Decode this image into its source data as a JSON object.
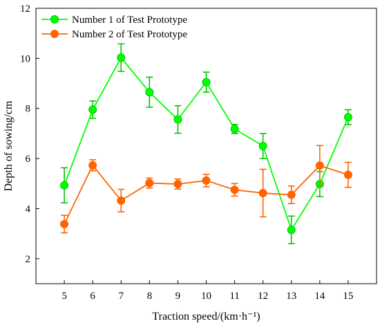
{
  "chart_data": {
    "type": "line",
    "xlabel": "Traction speed/(km·h⁻¹)",
    "ylabel": "Depth of sowing/cm",
    "x": [
      5,
      6,
      7,
      8,
      9,
      10,
      11,
      12,
      13,
      14,
      15
    ],
    "xlim": [
      4,
      16
    ],
    "ylim": [
      1,
      12
    ],
    "xticks": [
      5,
      6,
      7,
      8,
      9,
      10,
      11,
      12,
      13,
      14,
      15
    ],
    "yticks": [
      2,
      4,
      6,
      8,
      10,
      12
    ],
    "grid": false,
    "legend_position": "top-left",
    "series": [
      {
        "name": "Number 1 of Test Prototype",
        "color": "#00ff00",
        "errorbar_color": "#00c800",
        "marker": "circle",
        "values": [
          4.93,
          7.95,
          10.03,
          8.65,
          7.56,
          9.05,
          7.18,
          6.5,
          3.15,
          4.98,
          7.65
        ],
        "errors": [
          0.7,
          0.35,
          0.55,
          0.6,
          0.55,
          0.4,
          0.18,
          0.5,
          0.55,
          0.5,
          0.3
        ]
      },
      {
        "name": "Number 2 of Test Prototype",
        "color": "#ff6400",
        "errorbar_color": "#ff6400",
        "marker": "circle",
        "values": [
          3.38,
          5.73,
          4.32,
          5.02,
          4.98,
          5.12,
          4.75,
          4.62,
          4.55,
          5.72,
          5.35
        ],
        "errors": [
          0.35,
          0.22,
          0.45,
          0.2,
          0.2,
          0.25,
          0.25,
          0.95,
          0.35,
          0.8,
          0.5
        ]
      }
    ]
  }
}
